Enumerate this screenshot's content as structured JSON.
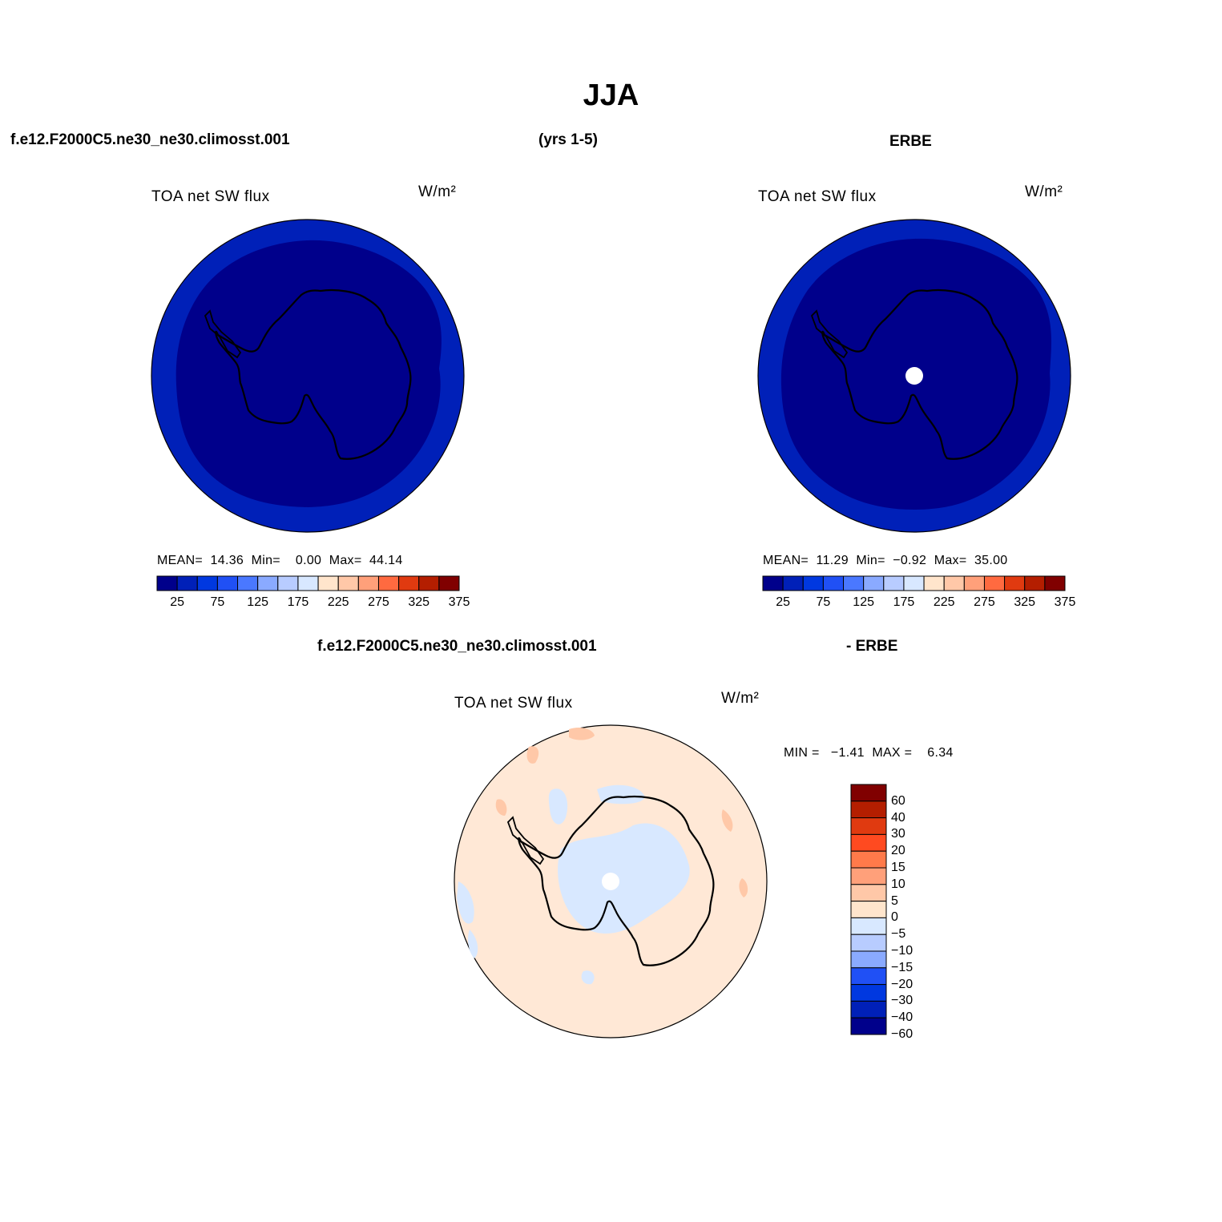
{
  "page": {
    "title": "JJA",
    "header_case": "f.e12.F2000C5.ne30_ne30.climosst.001",
    "header_years": "(yrs 1-5)",
    "header_obs": "ERBE",
    "diff_case": "f.e12.F2000C5.ne30_ne30.climosst.001",
    "diff_obs": "- ERBE"
  },
  "panels": {
    "model": {
      "variable": "TOA net SW flux",
      "units": "W/m²",
      "stats": "MEAN=  14.36  Min=    0.00  Max=  44.14"
    },
    "obs": {
      "variable": "TOA net SW flux",
      "units": "W/m²",
      "stats": "MEAN=  11.29  Min=  −0.92  Max=  35.00"
    },
    "diff": {
      "variable": "TOA net SW flux",
      "units": "W/m²",
      "stats": "MIN =   −1.41  MAX =    6.34"
    }
  },
  "colorbar_main": {
    "colors": [
      "#00008b",
      "#0020b8",
      "#0038e0",
      "#2050f5",
      "#4a78ff",
      "#8aaaff",
      "#b8ccff",
      "#d8e8ff",
      "#ffe5cc",
      "#ffc8a8",
      "#ffa07a",
      "#ff6a40",
      "#e03a10",
      "#b41e00",
      "#800000"
    ],
    "ticks": [
      "25",
      "75",
      "125",
      "175",
      "225",
      "275",
      "325",
      "375"
    ]
  },
  "colorbar_diff": {
    "colors_top_to_bottom": [
      "#800000",
      "#b41e00",
      "#e03a10",
      "#ff4a20",
      "#ff7a4a",
      "#ffa07a",
      "#ffc8a8",
      "#ffe5cc",
      "#d8e8ff",
      "#b8ccff",
      "#8aaaff",
      "#2050f5",
      "#0038e0",
      "#0020b8",
      "#00008b"
    ],
    "ticks": [
      "60",
      "40",
      "30",
      "20",
      "15",
      "10",
      "5",
      "0",
      "−5",
      "−10",
      "−15",
      "−20",
      "−30",
      "−40",
      "−60"
    ]
  },
  "map_colors": {
    "model_outer": "#0020b8",
    "model_inner": "#00008b",
    "obs_outer": "#0020b8",
    "obs_inner": "#00008b",
    "obs_missing": "#ffffff",
    "diff_bg": "#ffe8d6",
    "diff_neg": "#d8e8ff",
    "diff_pos": "#ffc8a8"
  }
}
